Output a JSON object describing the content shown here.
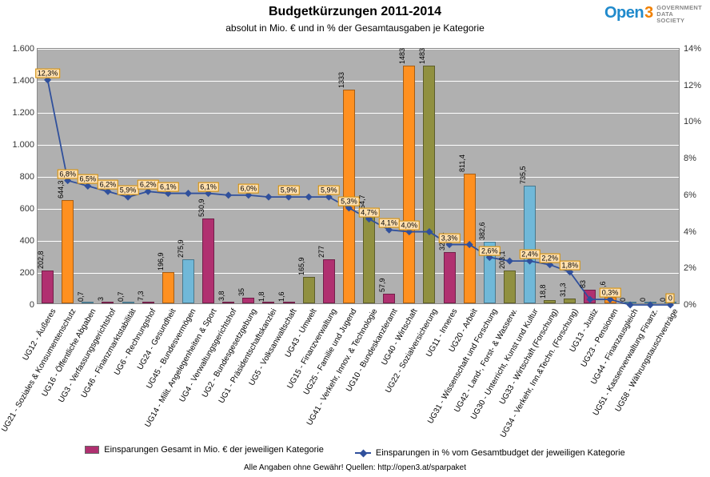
{
  "header": {
    "title": "Budgetkürzungen 2011-2014",
    "subtitle": "absolut in Mio. € und in % der Gesamtausgaben je Kategorie",
    "logo": {
      "open": "Open",
      "three": "3",
      "tag_l1": "GOVERNMENT",
      "tag_l2": "DATA",
      "tag_l3": "SOCIETY"
    }
  },
  "chart": {
    "type": "bar+line",
    "plot_bg": "#b0b0b0",
    "grid_color": "#ffffff",
    "y_left": {
      "min": 0,
      "max": 1600,
      "step": 200,
      "ticks": [
        0,
        200,
        400,
        600,
        800,
        1000,
        1200,
        1400,
        1600
      ],
      "tick_labels": [
        "0",
        "200",
        "400",
        "600",
        "800",
        "1.000",
        "1.200",
        "1.400",
        "1.600"
      ]
    },
    "y_right": {
      "min": 0,
      "max": 14,
      "step": 2,
      "ticks": [
        0,
        2,
        4,
        6,
        8,
        10,
        12,
        14
      ],
      "tick_labels": [
        "0%",
        "2%",
        "4%",
        "6%",
        "8%",
        "10%",
        "12%",
        "14%"
      ]
    },
    "line_color": "#30509c",
    "marker_style": "diamond",
    "categories": [
      {
        "label": "UG12 - Äußeres",
        "value": 202.8,
        "value_label": "202,8",
        "color": "#b03070",
        "pct": 12.3,
        "pct_label": "12,3%"
      },
      {
        "label": "UG21 - Soziales & Konsumentenschutz",
        "value": 644.3,
        "value_label": "644,3",
        "color": "#ff9020",
        "pct": 6.8,
        "pct_label": "6,8%"
      },
      {
        "label": "UG16 - Öffentliche Abgaben",
        "value": 0.7,
        "value_label": "0,7",
        "color": "#70b8d8",
        "pct": 6.5,
        "pct_label": "6,5%"
      },
      {
        "label": "UG3 - Verfassungsgerichtshof",
        "value": 3.0,
        "value_label": "3",
        "color": "#b03070",
        "pct": 6.2,
        "pct_label": "6,2%"
      },
      {
        "label": "UG46 - Finanzmarktstabilität",
        "value": 0.7,
        "value_label": "0,7",
        "color": "#70b8d8",
        "pct": 5.9,
        "pct_label": "5,9%"
      },
      {
        "label": "UG6 - Rechnungshof",
        "value": 7.3,
        "value_label": "7,3",
        "color": "#b03070",
        "pct": 6.2,
        "pct_label": "6,2%"
      },
      {
        "label": "UG24 - Gesundheit",
        "value": 196.9,
        "value_label": "196,9",
        "color": "#ff9020",
        "pct": 6.1,
        "pct_label": "6,1%"
      },
      {
        "label": "UG45 - Bundesvermögen",
        "value": 275.9,
        "value_label": "275,9",
        "color": "#70b8d8",
        "pct": 6.1,
        "pct_label": ""
      },
      {
        "label": "UG14 - Milit. Angelegenheiten & Sport",
        "value": 530.9,
        "value_label": "530,9",
        "color": "#b03070",
        "pct": 6.1,
        "pct_label": "6,1%"
      },
      {
        "label": "UG4 - Verwaltungsgerichtshof",
        "value": 3.8,
        "value_label": "3,8",
        "color": "#b03070",
        "pct": 6.0,
        "pct_label": ""
      },
      {
        "label": "UG2 - Bundesgesetzgebung",
        "value": 35.0,
        "value_label": "35",
        "color": "#b03070",
        "pct": 6.0,
        "pct_label": "6,0%"
      },
      {
        "label": "UG1 - Präsidentschaftskanzlei",
        "value": 1.8,
        "value_label": "1,8",
        "color": "#b03070",
        "pct": 5.9,
        "pct_label": ""
      },
      {
        "label": "UG5 - Volksanwaltschaft",
        "value": 1.6,
        "value_label": "1,6",
        "color": "#b03070",
        "pct": 5.9,
        "pct_label": "5,9%"
      },
      {
        "label": "UG43 - Umwelt",
        "value": 165.9,
        "value_label": "165,9",
        "color": "#909040",
        "pct": 5.9,
        "pct_label": ""
      },
      {
        "label": "UG15 - Finanzverwaltung",
        "value": 277.0,
        "value_label": "277",
        "color": "#b03070",
        "pct": 5.9,
        "pct_label": "5,9%"
      },
      {
        "label": "UG25 - Familie und Jugend",
        "value": 1333.0,
        "value_label": "1333",
        "color": "#ff9020",
        "pct": 5.3,
        "pct_label": "5,3%"
      },
      {
        "label": "UG41 - Verkehr, Innov. & Technologie",
        "value": 554.7,
        "value_label": "554,7",
        "color": "#909040",
        "pct": 4.7,
        "pct_label": "4,7%"
      },
      {
        "label": "UG10 - Bundeskanzleramt",
        "value": 57.9,
        "value_label": "57,9",
        "color": "#b03070",
        "pct": 4.1,
        "pct_label": "4,1%"
      },
      {
        "label": "UG40 - Wirtschaft",
        "value": 1483.0,
        "value_label": "1483",
        "color": "#ff9020",
        "pct": 4.0,
        "pct_label": "4,0%"
      },
      {
        "label": "UG22 - Sozialversicherung",
        "value": 1483.0,
        "value_label": "1483",
        "color": "#909040",
        "pct": 4.0,
        "pct_label": ""
      },
      {
        "label": "UG11 - Inneres",
        "value": 321.4,
        "value_label": "321,4",
        "color": "#b03070",
        "pct": 3.3,
        "pct_label": "3,3%"
      },
      {
        "label": "UG20 - Arbeit",
        "value": 811.4,
        "value_label": "811,4",
        "color": "#ff9020",
        "pct": 3.3,
        "pct_label": ""
      },
      {
        "label": "UG31 - Wissenschaft und Forschung",
        "value": 382.6,
        "value_label": "382,6",
        "color": "#70b8d8",
        "pct": 2.6,
        "pct_label": "2,6%"
      },
      {
        "label": "UG42 - Land-, Forst- & Wasserw.",
        "value": 203.1,
        "value_label": "203,1",
        "color": "#909040",
        "pct": 2.4,
        "pct_label": ""
      },
      {
        "label": "UG30 - Unterricht, Kunst und Kultur",
        "value": 735.5,
        "value_label": "735,5",
        "color": "#70b8d8",
        "pct": 2.4,
        "pct_label": "2,4%"
      },
      {
        "label": "UG33 - Wirtschaft (Forschung)",
        "value": 18.8,
        "value_label": "18,8",
        "color": "#909040",
        "pct": 2.2,
        "pct_label": "2,2%"
      },
      {
        "label": "UG34 - Verkehr, Inn.&Techn. (Forschung)",
        "value": 31.3,
        "value_label": "31,3",
        "color": "#909040",
        "pct": 1.8,
        "pct_label": "1,8%"
      },
      {
        "label": "UG13 - Justiz",
        "value": 83.0,
        "value_label": "83",
        "color": "#b03070",
        "pct": 0.3,
        "pct_label": ""
      },
      {
        "label": "UG23 - Pensionen",
        "value": 38.6,
        "value_label": "38,6",
        "color": "#ff9020",
        "pct": 0.3,
        "pct_label": "0,3%"
      },
      {
        "label": "UG44 - Finanzausgleich",
        "value": 0.0,
        "value_label": "0",
        "color": "#70b8d8",
        "pct": 0.0,
        "pct_label": ""
      },
      {
        "label": "UG51 - Kassenverwaltung Finanz.",
        "value": 0.0,
        "value_label": "0",
        "color": "#70b8d8",
        "pct": 0.0,
        "pct_label": ""
      },
      {
        "label": "UG58 - Währungstauschverträge",
        "value": 0.0,
        "value_label": "0",
        "color": "#70b8d8",
        "pct": 0.0,
        "pct_label": "0"
      }
    ]
  },
  "legend": {
    "bar": "Einsparungen Gesamt in Mio. € der jeweiligen Kategorie",
    "line": "Einsparungen in % vom Gesamtbudget der jeweiligen Kategorie"
  },
  "footer": "Alle Angaben ohne Gewähr! Quellen: http://open3.at/sparpaket"
}
